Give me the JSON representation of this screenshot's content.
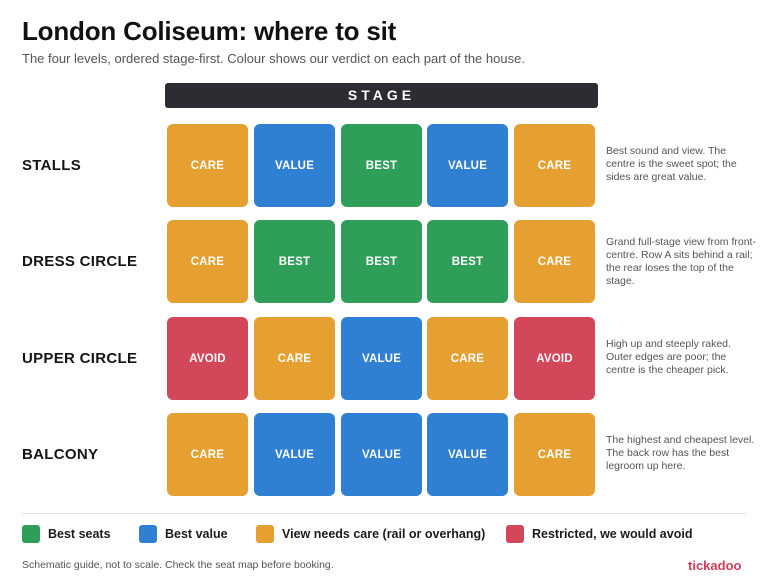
{
  "header": {
    "title": "London Coliseum: where to sit",
    "subtitle": "The four levels, ordered stage-first. Colour shows our verdict on each part of the house."
  },
  "stage_label": "STAGE",
  "colors": {
    "best": "#2f9e58",
    "value": "#2f7fd2",
    "care": "#e6a032",
    "avoid": "#d3475b"
  },
  "levels": [
    {
      "name": "STALLS",
      "cells": [
        {
          "label": "CARE",
          "verdict": "care"
        },
        {
          "label": "VALUE",
          "verdict": "value"
        },
        {
          "label": "BEST",
          "verdict": "best"
        },
        {
          "label": "VALUE",
          "verdict": "value"
        },
        {
          "label": "CARE",
          "verdict": "care"
        }
      ],
      "note": "Best sound and view. The centre is the sweet spot; the sides are great value."
    },
    {
      "name": "DRESS CIRCLE",
      "cells": [
        {
          "label": "CARE",
          "verdict": "care"
        },
        {
          "label": "BEST",
          "verdict": "best"
        },
        {
          "label": "BEST",
          "verdict": "best"
        },
        {
          "label": "BEST",
          "verdict": "best"
        },
        {
          "label": "CARE",
          "verdict": "care"
        }
      ],
      "note": "Grand full-stage view from front-centre. Row A sits behind a rail; the rear loses the top of the stage."
    },
    {
      "name": "UPPER CIRCLE",
      "cells": [
        {
          "label": "AVOID",
          "verdict": "avoid"
        },
        {
          "label": "CARE",
          "verdict": "care"
        },
        {
          "label": "VALUE",
          "verdict": "value"
        },
        {
          "label": "CARE",
          "verdict": "care"
        },
        {
          "label": "AVOID",
          "verdict": "avoid"
        }
      ],
      "note": "High up and steeply raked. Outer edges are poor; the centre is the cheaper pick."
    },
    {
      "name": "BALCONY",
      "cells": [
        {
          "label": "CARE",
          "verdict": "care"
        },
        {
          "label": "VALUE",
          "verdict": "value"
        },
        {
          "label": "VALUE",
          "verdict": "value"
        },
        {
          "label": "VALUE",
          "verdict": "value"
        },
        {
          "label": "CARE",
          "verdict": "care"
        }
      ],
      "note": "The highest and cheapest level. The back row has the best legroom up here."
    }
  ],
  "legend": [
    {
      "label": "Best seats",
      "verdict": "best"
    },
    {
      "label": "Best value",
      "verdict": "value"
    },
    {
      "label": "View needs care (rail or overhang)",
      "verdict": "care"
    },
    {
      "label": "Restricted, we would avoid",
      "verdict": "avoid"
    }
  ],
  "footer": {
    "note": "Schematic guide, not to scale. Check the seat map before booking.",
    "brand": "tickadoo"
  }
}
